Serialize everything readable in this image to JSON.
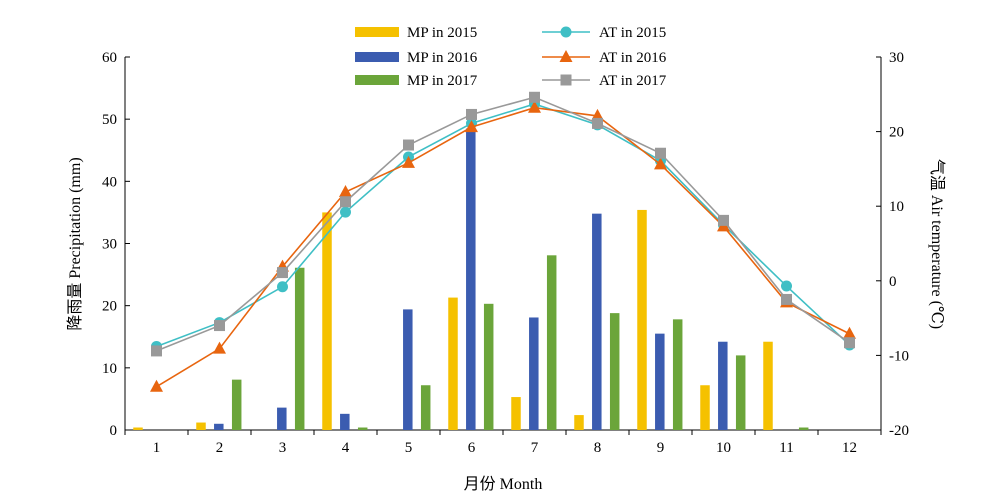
{
  "chart_data": {
    "type": "bar",
    "categories": [
      "1",
      "2",
      "3",
      "4",
      "5",
      "6",
      "7",
      "8",
      "9",
      "10",
      "11",
      "12"
    ],
    "xlabel": "月份 Month",
    "ylabel_left": "降雨量 Precipitation (mm)",
    "ylabel_right": "气温 Air temperature (℃)",
    "ylim_left": [
      0,
      60
    ],
    "yticks_left": [
      0,
      10,
      20,
      30,
      40,
      50,
      60
    ],
    "ylim_right": [
      -20,
      30
    ],
    "yticks_right": [
      -20,
      -10,
      0,
      10,
      20,
      30
    ],
    "grid": false,
    "legend_position": "top",
    "bar_series": [
      {
        "name": "MP in 2015",
        "color": "#F5C100",
        "values": [
          0.4,
          1.2,
          0,
          35,
          0,
          21.3,
          5.3,
          2.4,
          35.4,
          7.2,
          14.2,
          0
        ]
      },
      {
        "name": "MP in 2016",
        "color": "#3B5CB0",
        "values": [
          0,
          1.0,
          3.6,
          2.6,
          19.4,
          48.5,
          18.1,
          34.8,
          15.5,
          14.2,
          0,
          0
        ]
      },
      {
        "name": "MP in 2017",
        "color": "#6BA53A",
        "values": [
          0,
          8.1,
          26.1,
          0.4,
          7.2,
          20.3,
          28.1,
          18.8,
          17.8,
          12.0,
          0.4,
          0
        ]
      }
    ],
    "line_series": [
      {
        "name": "AT in 2015",
        "color": "#3FBFC5",
        "marker": "circle",
        "values": [
          -8.8,
          -5.6,
          -0.8,
          9.2,
          16.6,
          21.1,
          23.7,
          20.9,
          16.1,
          7.5,
          -0.7,
          -8.6
        ]
      },
      {
        "name": "AT in 2016",
        "color": "#E8650F",
        "marker": "triangle",
        "values": [
          -14.2,
          -9.1,
          1.9,
          11.9,
          15.8,
          20.6,
          23.2,
          22.1,
          15.6,
          7.3,
          -2.9,
          -7.1
        ]
      },
      {
        "name": "AT in 2017",
        "color": "#999999",
        "marker": "square",
        "values": [
          -9.4,
          -6.0,
          1.1,
          10.6,
          18.2,
          22.3,
          24.6,
          21.1,
          17.1,
          8.1,
          -2.5,
          -8.3
        ]
      }
    ]
  }
}
